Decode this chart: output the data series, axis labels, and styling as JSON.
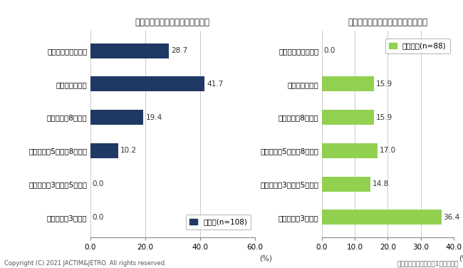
{
  "left_title": "<製造業> 生産状況（単一回答）",
  "right_title": "<非製造業> 稼働状況（単一回答）",
  "left_title_display": "＜製造業＞生産状況（単一回答）",
  "right_title_display": "＜非製造業＞稼働状況（単一回答）",
  "categories": [
    "コロナ前の水準以上",
    "コロナ前と同等",
    "コロナ前比8割程度",
    "コロナ前比5割以上8割未満",
    "コロナ前比3割以上5割未満",
    "コロナ前比3割未満"
  ],
  "left_values": [
    28.7,
    41.7,
    19.4,
    10.2,
    0.0,
    0.0
  ],
  "right_values": [
    0.0,
    15.9,
    15.9,
    17.0,
    14.8,
    36.4
  ],
  "left_color": "#1f3864",
  "right_color": "#92d050",
  "left_legend": "製造業(n=108)",
  "right_legend": "非製造業(n=88)",
  "left_xlim": [
    0,
    60
  ],
  "right_xlim": [
    0,
    40
  ],
  "left_xticks": [
    0.0,
    20.0,
    40.0,
    60.0
  ],
  "right_xticks": [
    0.0,
    10.0,
    20.0,
    30.0,
    40.0
  ],
  "copyright": "Copyright (C) 2021 JACTIM&JETRO. All rights reserved.",
  "note": "（注）未回答の製造業1社を除く。",
  "bg_color": "#ffffff",
  "grid_color": "#cccccc",
  "bar_height": 0.45
}
